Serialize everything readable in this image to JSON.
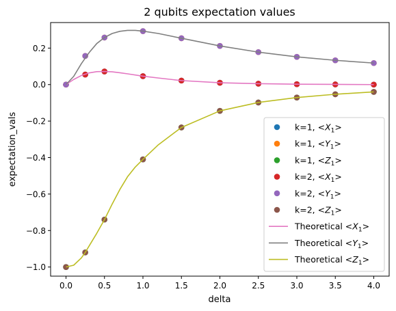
{
  "chart_data": {
    "type": "scatter",
    "title": "2 qubits expectation values",
    "xlabel": "delta",
    "ylabel": "expectation_vals",
    "xlim": [
      -0.2,
      4.2
    ],
    "ylim": [
      -1.05,
      0.34
    ],
    "xticks": [
      0.0,
      0.5,
      1.0,
      1.5,
      2.0,
      2.5,
      3.0,
      3.5,
      4.0
    ],
    "xtick_labels": [
      "0.0",
      "0.5",
      "1.0",
      "1.5",
      "2.0",
      "2.5",
      "3.0",
      "3.5",
      "4.0"
    ],
    "yticks": [
      -1.0,
      -0.8,
      -0.6,
      -0.4,
      -0.2,
      0.0,
      0.2
    ],
    "ytick_labels": [
      "−1.0",
      "−0.8",
      "−0.6",
      "−0.4",
      "−0.2",
      "0.0",
      "0.2"
    ],
    "grid": false,
    "legend_position": "lower-right",
    "x": [
      0.0,
      0.25,
      0.5,
      1.0,
      1.5,
      2.0,
      2.5,
      3.0,
      3.5,
      4.0
    ],
    "series": [
      {
        "kind": "scatter",
        "name": "k=1, <X_1>",
        "color": "#1f77b4",
        "values": [
          0.0,
          0.055,
          0.072,
          0.046,
          0.022,
          0.01,
          0.005,
          0.002,
          0.001,
          0.0
        ]
      },
      {
        "kind": "scatter",
        "name": "k=1, <Y_1>",
        "color": "#ff7f0e",
        "values": [
          0.0,
          0.157,
          0.258,
          0.293,
          0.254,
          0.212,
          0.178,
          0.152,
          0.133,
          0.118
        ]
      },
      {
        "kind": "scatter",
        "name": "k=1, <Z_1>",
        "color": "#2ca02c",
        "values": [
          -1.0,
          -0.92,
          -0.74,
          -0.41,
          -0.235,
          -0.144,
          -0.098,
          -0.071,
          -0.053,
          -0.04
        ]
      },
      {
        "kind": "scatter",
        "name": "k=2, <X_1>",
        "color": "#d62728",
        "values": [
          0.0,
          0.055,
          0.072,
          0.046,
          0.022,
          0.01,
          0.005,
          0.002,
          0.001,
          0.0
        ]
      },
      {
        "kind": "scatter",
        "name": "k=2, <Y_1>",
        "color": "#9467bd",
        "values": [
          0.0,
          0.157,
          0.258,
          0.293,
          0.254,
          0.212,
          0.178,
          0.152,
          0.133,
          0.118
        ]
      },
      {
        "kind": "scatter",
        "name": "k=2, <Z_1>",
        "color": "#8c564b",
        "values": [
          -1.0,
          -0.92,
          -0.74,
          -0.41,
          -0.235,
          -0.144,
          -0.098,
          -0.071,
          -0.053,
          -0.04
        ]
      },
      {
        "kind": "line",
        "name": "Theoretical <X_1>",
        "color": "#e377c2",
        "x": [
          0.0,
          0.1,
          0.2,
          0.3,
          0.4,
          0.5,
          0.6,
          0.7,
          0.8,
          1.0,
          1.2,
          1.5,
          2.0,
          2.5,
          3.0,
          3.5,
          4.0
        ],
        "values": [
          0.0,
          0.028,
          0.05,
          0.064,
          0.071,
          0.072,
          0.07,
          0.065,
          0.059,
          0.046,
          0.036,
          0.022,
          0.01,
          0.005,
          0.002,
          0.001,
          0.0
        ]
      },
      {
        "kind": "line",
        "name": "Theoretical <Y_1>",
        "color": "#7f7f7f",
        "x": [
          0.0,
          0.1,
          0.2,
          0.3,
          0.4,
          0.5,
          0.6,
          0.7,
          0.8,
          0.9,
          1.0,
          1.2,
          1.5,
          2.0,
          2.5,
          3.0,
          3.5,
          4.0
        ],
        "values": [
          0.0,
          0.045,
          0.115,
          0.175,
          0.225,
          0.258,
          0.28,
          0.292,
          0.297,
          0.297,
          0.293,
          0.28,
          0.254,
          0.212,
          0.178,
          0.152,
          0.133,
          0.118
        ]
      },
      {
        "kind": "line",
        "name": "Theoretical <Z_1>",
        "color": "#bcbd22",
        "x": [
          0.0,
          0.1,
          0.2,
          0.25,
          0.3,
          0.4,
          0.5,
          0.6,
          0.7,
          0.8,
          0.9,
          1.0,
          1.2,
          1.5,
          2.0,
          2.5,
          3.0,
          3.5,
          4.0
        ],
        "values": [
          -1.0,
          -0.99,
          -0.95,
          -0.92,
          -0.885,
          -0.815,
          -0.74,
          -0.655,
          -0.575,
          -0.505,
          -0.452,
          -0.41,
          -0.33,
          -0.235,
          -0.144,
          -0.098,
          -0.071,
          -0.053,
          -0.04
        ]
      }
    ],
    "legend": [
      {
        "prefix": "k=1, ",
        "op": "X",
        "kind": "scatter",
        "color": "#1f77b4"
      },
      {
        "prefix": "k=1, ",
        "op": "Y",
        "kind": "scatter",
        "color": "#ff7f0e"
      },
      {
        "prefix": "k=1, ",
        "op": "Z",
        "kind": "scatter",
        "color": "#2ca02c"
      },
      {
        "prefix": "k=2, ",
        "op": "X",
        "kind": "scatter",
        "color": "#d62728"
      },
      {
        "prefix": "k=2, ",
        "op": "Y",
        "kind": "scatter",
        "color": "#9467bd"
      },
      {
        "prefix": "k=2, ",
        "op": "Z",
        "kind": "scatter",
        "color": "#8c564b"
      },
      {
        "prefix": "Theoretical ",
        "op": "X",
        "kind": "line",
        "color": "#e377c2"
      },
      {
        "prefix": "Theoretical ",
        "op": "Y",
        "kind": "line",
        "color": "#7f7f7f"
      },
      {
        "prefix": "Theoretical ",
        "op": "Z",
        "kind": "line",
        "color": "#bcbd22"
      }
    ]
  }
}
